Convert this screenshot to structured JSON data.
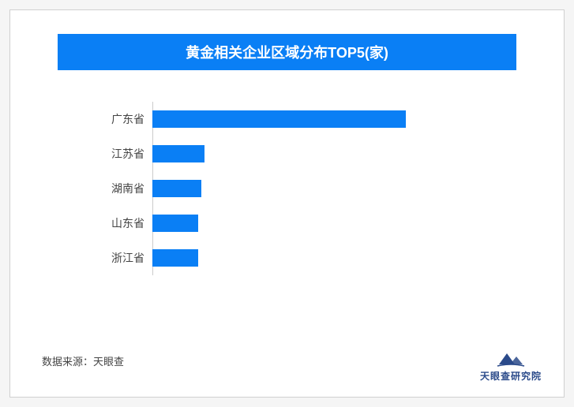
{
  "title": "黄金相关企业区域分布TOP5(家)",
  "title_bg": "#0a7ff5",
  "title_color": "#ffffff",
  "title_fontsize": 18,
  "chart": {
    "type": "bar-horizontal",
    "bar_color": "#0a7ff5",
    "axis_color": "#cccccc",
    "label_fontsize": 14,
    "label_color": "#444444",
    "max_value": 100,
    "categories": [
      "广东省",
      "江苏省",
      "湖南省",
      "山东省",
      "浙江省"
    ],
    "values": [
      78,
      16,
      15,
      14,
      14
    ]
  },
  "source_label": "数据来源：天眼查",
  "source_fontsize": 13,
  "logo": {
    "text": "天眼查研究院",
    "color": "#2a4a8a",
    "fontsize": 12
  },
  "card_bg": "#ffffff",
  "page_bg": "#f5f5f5"
}
